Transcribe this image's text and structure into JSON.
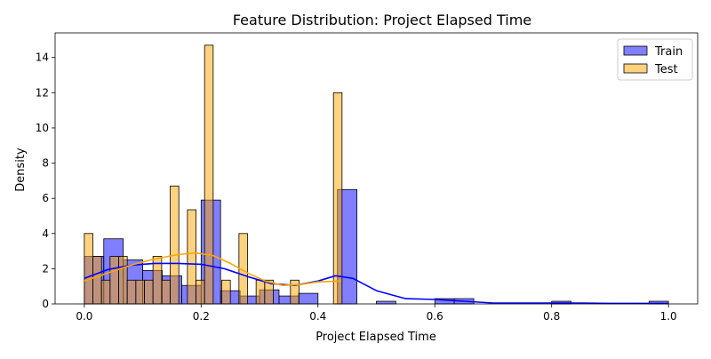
{
  "chart_data": {
    "type": "histogram",
    "title": "Feature Distribution: Project Elapsed Time",
    "xlabel": "Project Elapsed Time",
    "ylabel": "Density",
    "xlim": [
      -0.05,
      1.05
    ],
    "ylim": [
      0,
      15.4
    ],
    "x_ticks": [
      0.0,
      0.2,
      0.4,
      0.6,
      0.8,
      1.0
    ],
    "x_tick_labels": [
      "0.0",
      "0.2",
      "0.4",
      "0.6",
      "0.8",
      "1.0"
    ],
    "y_ticks": [
      0,
      2,
      4,
      6,
      8,
      10,
      12,
      14
    ],
    "y_tick_labels": [
      "0",
      "2",
      "4",
      "6",
      "8",
      "10",
      "12",
      "14"
    ],
    "grid": false,
    "legend_position": "top-right",
    "series": [
      {
        "name": "Train",
        "color": "#0000ff",
        "fill_opacity": 0.5,
        "bins": [
          {
            "x0": 0.0,
            "x1": 0.0333,
            "density": 2.7
          },
          {
            "x0": 0.0333,
            "x1": 0.0667,
            "density": 3.7
          },
          {
            "x0": 0.0667,
            "x1": 0.1,
            "density": 2.5
          },
          {
            "x0": 0.1,
            "x1": 0.1333,
            "density": 1.9
          },
          {
            "x0": 0.1333,
            "x1": 0.1667,
            "density": 1.6
          },
          {
            "x0": 0.1667,
            "x1": 0.2,
            "density": 1.05
          },
          {
            "x0": 0.2,
            "x1": 0.2333,
            "density": 5.9
          },
          {
            "x0": 0.2333,
            "x1": 0.2667,
            "density": 0.75
          },
          {
            "x0": 0.2667,
            "x1": 0.3,
            "density": 0.45
          },
          {
            "x0": 0.3,
            "x1": 0.3333,
            "density": 0.8
          },
          {
            "x0": 0.3333,
            "x1": 0.3667,
            "density": 0.45
          },
          {
            "x0": 0.3667,
            "x1": 0.4,
            "density": 0.6
          },
          {
            "x0": 0.4333,
            "x1": 0.4667,
            "density": 6.5
          },
          {
            "x0": 0.5,
            "x1": 0.5333,
            "density": 0.15
          },
          {
            "x0": 0.6,
            "x1": 0.6333,
            "density": 0.3
          },
          {
            "x0": 0.6333,
            "x1": 0.6667,
            "density": 0.3
          },
          {
            "x0": 0.8,
            "x1": 0.8333,
            "density": 0.15
          },
          {
            "x0": 0.9667,
            "x1": 1.0,
            "density": 0.15
          }
        ],
        "kde": {
          "x": [
            0.0,
            0.04,
            0.08,
            0.12,
            0.16,
            0.2,
            0.24,
            0.28,
            0.32,
            0.36,
            0.4,
            0.43,
            0.46,
            0.5,
            0.55,
            0.6,
            0.65,
            0.7,
            0.75,
            0.8,
            0.85,
            0.9,
            0.95,
            1.0
          ],
          "y": [
            1.45,
            1.95,
            2.2,
            2.3,
            2.3,
            2.25,
            2.0,
            1.55,
            1.15,
            1.05,
            1.3,
            1.6,
            1.45,
            0.75,
            0.3,
            0.25,
            0.15,
            0.05,
            0.05,
            0.05,
            0.05,
            0.03,
            0.03,
            0.03
          ]
        }
      },
      {
        "name": "Test",
        "color": "#ffa500",
        "fill_opacity": 0.5,
        "bins": [
          {
            "x0": 0.0,
            "x1": 0.0147,
            "density": 4.0
          },
          {
            "x0": 0.0147,
            "x1": 0.0294,
            "density": 2.7
          },
          {
            "x0": 0.0294,
            "x1": 0.0441,
            "density": 1.35
          },
          {
            "x0": 0.0441,
            "x1": 0.0588,
            "density": 2.7
          },
          {
            "x0": 0.0588,
            "x1": 0.0735,
            "density": 2.7
          },
          {
            "x0": 0.0735,
            "x1": 0.0882,
            "density": 1.35
          },
          {
            "x0": 0.0882,
            "x1": 0.1029,
            "density": 1.35
          },
          {
            "x0": 0.1029,
            "x1": 0.1176,
            "density": 1.35
          },
          {
            "x0": 0.1176,
            "x1": 0.1324,
            "density": 2.7
          },
          {
            "x0": 0.1324,
            "x1": 0.1471,
            "density": 1.35
          },
          {
            "x0": 0.1471,
            "x1": 0.1618,
            "density": 6.7
          },
          {
            "x0": 0.1765,
            "x1": 0.1912,
            "density": 5.35
          },
          {
            "x0": 0.1912,
            "x1": 0.2059,
            "density": 1.35
          },
          {
            "x0": 0.2059,
            "x1": 0.2206,
            "density": 14.7
          },
          {
            "x0": 0.2353,
            "x1": 0.25,
            "density": 1.35
          },
          {
            "x0": 0.2647,
            "x1": 0.2794,
            "density": 4.0
          },
          {
            "x0": 0.2941,
            "x1": 0.3088,
            "density": 1.35
          },
          {
            "x0": 0.3088,
            "x1": 0.3235,
            "density": 1.35
          },
          {
            "x0": 0.3529,
            "x1": 0.3676,
            "density": 1.35
          },
          {
            "x0": 0.4265,
            "x1": 0.4412,
            "density": 12.0
          }
        ],
        "kde": {
          "x": [
            0.0,
            0.04,
            0.08,
            0.12,
            0.16,
            0.19,
            0.22,
            0.25,
            0.28,
            0.31,
            0.34,
            0.37,
            0.4,
            0.44
          ],
          "y": [
            1.3,
            1.75,
            2.2,
            2.55,
            2.8,
            2.9,
            2.75,
            2.3,
            1.75,
            1.3,
            1.05,
            1.1,
            1.25,
            1.3
          ]
        }
      }
    ]
  }
}
